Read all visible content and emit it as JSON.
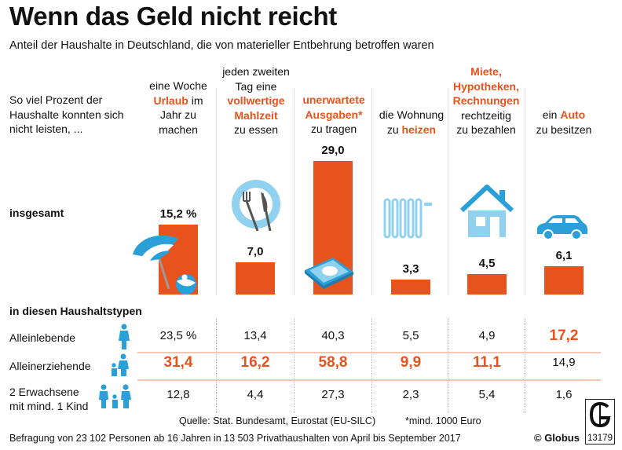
{
  "header": {
    "title": "Wenn das Geld nicht reicht",
    "subtitle": "Anteil der Haushalte in Deutschland, die von materieller Entbehrung betroffen waren",
    "row_label": "So viel Prozent der Haushalte konnten sich nicht leisten, ..."
  },
  "columns": [
    {
      "pre": "eine Woche",
      "hl": "Urlaub",
      "post": "im Jahr zu machen"
    },
    {
      "pre": "jeden zweiten Tag eine",
      "hl": "vollwertige Mahlzeit",
      "post": "zu essen"
    },
    {
      "pre": "",
      "hl": "unerwartete Ausgaben*",
      "post": "zu tragen"
    },
    {
      "pre": "die Wohnung zu",
      "hl": "heizen",
      "post": ""
    },
    {
      "pre": "",
      "hl": "Miete, Hypotheken, Rechnungen",
      "post": "rechtzeitig zu bezahlen"
    },
    {
      "pre": "ein",
      "hl": "Auto",
      "post": "zu besitzen"
    }
  ],
  "labels": {
    "insgesamt": "insgesamt",
    "haushaltstypen": "in diesen Haushaltstypen"
  },
  "chart_data": {
    "type": "bar",
    "categories": [
      "Urlaub",
      "vollwertige Mahlzeit",
      "unerwartete Ausgaben",
      "heizen",
      "Miete, Hypotheken, Rechnungen",
      "Auto"
    ],
    "values": [
      15.2,
      7.0,
      29.0,
      3.3,
      4.5,
      6.1
    ],
    "value_labels": [
      "15,2 %",
      "7,0",
      "29,0",
      "3,3",
      "4,5",
      "6,1"
    ],
    "ylim": [
      0,
      29.0
    ]
  },
  "table": {
    "rows": [
      {
        "label": "Alleinlebende",
        "icon": "single-person-icon",
        "values": [
          "23,5 %",
          "13,4",
          "40,3",
          "5,5",
          "4,9",
          "17,2"
        ],
        "highlight": [
          false,
          false,
          false,
          false,
          false,
          true
        ]
      },
      {
        "label": "Alleinerziehende",
        "icon": "single-parent-icon",
        "values": [
          "31,4",
          "16,2",
          "58,8",
          "9,9",
          "11,1",
          "14,9"
        ],
        "highlight": [
          true,
          true,
          true,
          true,
          true,
          false
        ]
      },
      {
        "label": "2 Erwachsene mit mind. 1 Kind",
        "icon": "family-icon",
        "values": [
          "12,8",
          "4,4",
          "27,3",
          "2,3",
          "5,4",
          "1,6"
        ],
        "highlight": [
          false,
          false,
          false,
          false,
          false,
          false
        ]
      }
    ]
  },
  "footer": {
    "source": "Quelle: Stat. Bundesamt, Eurostat (EU-SILC)",
    "footnote": "*mind. 1000 Euro",
    "method": "Befragung von 23 102 Personen ab 16 Jahren in 13 503 Privathaushalten von April bis September 2017",
    "brand": "© Globus",
    "logo_number": "13179"
  },
  "colors": {
    "accent": "#e8531d",
    "icon_blue": "#2a9fd8",
    "icon_light": "#8fd1ee"
  }
}
